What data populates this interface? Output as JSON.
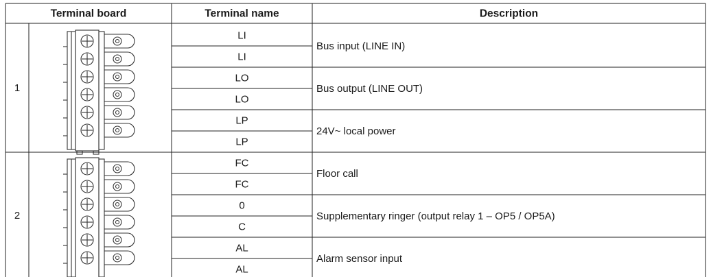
{
  "table": {
    "header": [
      "Terminal board",
      "Terminal name",
      "Description"
    ],
    "groups": [
      {
        "board": "1",
        "terminals": [
          "LI",
          "LI",
          "LO",
          "LO",
          "LP",
          "LP"
        ],
        "descriptions": [
          "Bus input (LINE IN)",
          "Bus output (LINE OUT)",
          "24V~ local power"
        ]
      },
      {
        "board": "2",
        "terminals": [
          "FC",
          "FC",
          "0",
          "C",
          "AL",
          "AL"
        ],
        "descriptions": [
          "Floor call",
          "Supplementary ringer (output relay 1 – OP5 / OP5A)",
          "Alarm sensor input"
        ]
      }
    ]
  }
}
